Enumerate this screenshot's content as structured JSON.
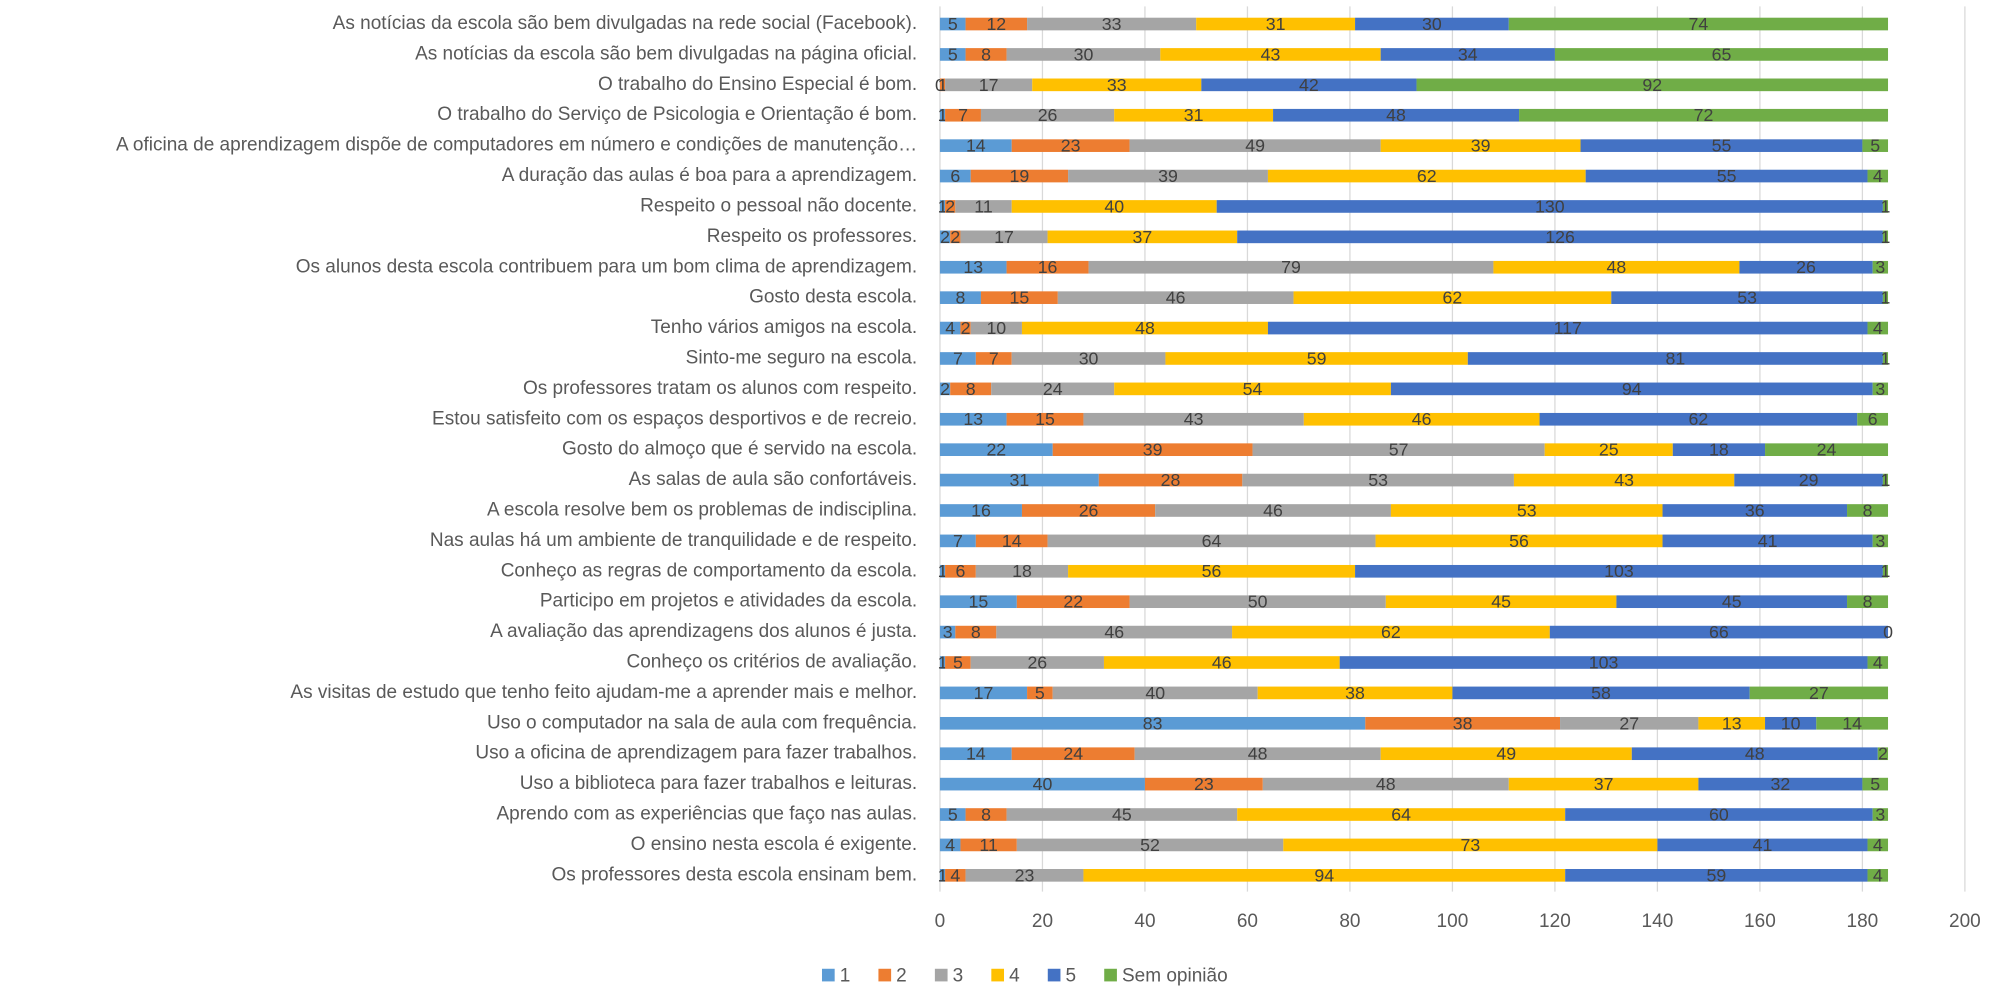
{
  "chart_data": {
    "type": "stacked_bar_horizontal",
    "categories": [
      "As notícias da escola são bem divulgadas na rede social (Facebook).",
      "As notícias da escola são bem divulgadas na página oficial.",
      "O trabalho do Ensino Especial é bom.",
      "O trabalho do Serviço de Psicologia e Orientação é bom.",
      "A oficina de aprendizagem dispõe de computadores em número e condições de manutenção…",
      "A duração das aulas é boa para a aprendizagem.",
      "Respeito o pessoal não docente.",
      "Respeito os professores.",
      "Os alunos desta escola contribuem para um bom clima de aprendizagem.",
      "Gosto desta escola.",
      "Tenho vários amigos na escola.",
      "Sinto-me seguro na escola.",
      "Os professores tratam os alunos com respeito.",
      "Estou satisfeito com os espaços desportivos e de recreio.",
      "Gosto do almoço que é servido na escola.",
      "As salas de aula são confortáveis.",
      "A escola resolve bem os problemas de indisciplina.",
      "Nas aulas há um ambiente de tranquilidade e de respeito.",
      "Conheço as regras de comportamento da escola.",
      "Participo em projetos e atividades da escola.",
      "A avaliação das aprendizagens dos alunos é justa.",
      "Conheço os critérios de avaliação.",
      "As visitas de estudo que tenho feito ajudam-me a aprender mais e melhor.",
      "Uso o computador na sala de aula com frequência.",
      "Uso a oficina de aprendizagem para fazer trabalhos.",
      "Uso a biblioteca para fazer trabalhos e leituras.",
      "Aprendo com as experiências que faço nas aulas.",
      "O ensino nesta escola é exigente.",
      "Os professores desta escola ensinam bem."
    ],
    "series": [
      {
        "name": "1",
        "color": "#5b9bd5",
        "values": [
          5,
          5,
          0,
          1,
          14,
          6,
          1,
          2,
          13,
          8,
          4,
          7,
          2,
          13,
          22,
          31,
          16,
          7,
          1,
          15,
          3,
          1,
          17,
          83,
          14,
          40,
          5,
          4,
          1
        ]
      },
      {
        "name": "2",
        "color": "#ed7d31",
        "values": [
          12,
          8,
          1,
          7,
          23,
          19,
          2,
          2,
          16,
          15,
          2,
          7,
          8,
          15,
          39,
          28,
          26,
          14,
          6,
          22,
          8,
          5,
          5,
          38,
          24,
          23,
          8,
          11,
          4
        ]
      },
      {
        "name": "3",
        "color": "#a5a5a5",
        "values": [
          33,
          30,
          17,
          26,
          49,
          39,
          11,
          17,
          79,
          46,
          10,
          30,
          24,
          43,
          57,
          53,
          46,
          64,
          18,
          50,
          46,
          26,
          40,
          27,
          48,
          48,
          45,
          52,
          23
        ]
      },
      {
        "name": "4",
        "color": "#ffc000",
        "values": [
          31,
          43,
          33,
          31,
          39,
          62,
          40,
          37,
          48,
          62,
          48,
          59,
          54,
          46,
          25,
          43,
          53,
          56,
          56,
          45,
          62,
          46,
          38,
          13,
          49,
          37,
          64,
          73,
          94
        ]
      },
      {
        "name": "5",
        "color": "#4472c4",
        "values": [
          30,
          34,
          42,
          48,
          55,
          55,
          130,
          126,
          26,
          53,
          117,
          81,
          94,
          62,
          18,
          29,
          36,
          41,
          103,
          45,
          66,
          103,
          58,
          10,
          48,
          32,
          60,
          41,
          59
        ]
      },
      {
        "name": "Sem opinião",
        "color": "#70ad47",
        "values": [
          74,
          65,
          92,
          72,
          5,
          4,
          1,
          1,
          3,
          1,
          4,
          1,
          3,
          6,
          24,
          1,
          8,
          3,
          1,
          8,
          0,
          4,
          27,
          14,
          2,
          5,
          3,
          4,
          4
        ]
      }
    ],
    "xlim": [
      0,
      200
    ],
    "xticks": [
      0,
      20,
      40,
      60,
      80,
      100,
      120,
      140,
      160,
      180,
      200
    ],
    "grid": true,
    "legend": "bottom"
  }
}
